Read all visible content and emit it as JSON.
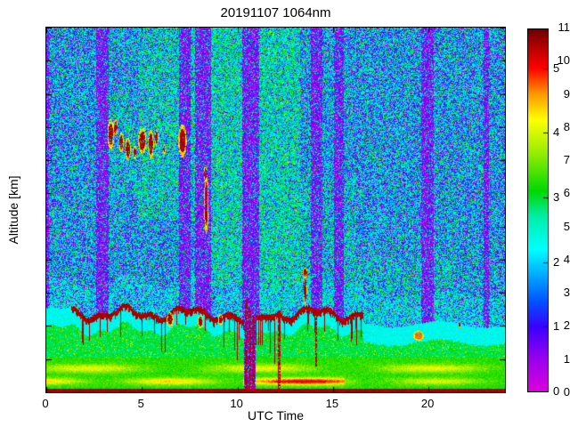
{
  "chart_data": {
    "type": "heatmap",
    "title": "20191107 1064nm",
    "xlabel": "UTC Time",
    "ylabel": "Altitude [km]",
    "x_range": [
      0,
      24
    ],
    "y_range": [
      0,
      11
    ],
    "x_ticks": [
      0,
      5,
      10,
      15,
      20
    ],
    "y_ticks": [
      0,
      1,
      2,
      3,
      4,
      5,
      6,
      7,
      8,
      9,
      10,
      11
    ],
    "colorbar": {
      "ticks": [
        0,
        1,
        2,
        3,
        4,
        5
      ],
      "value_range": [
        0,
        5.6
      ]
    },
    "colormap": {
      "stops": [
        {
          "v": 0.0,
          "color": "#dc00dc"
        },
        {
          "v": 0.5,
          "color": "#9900ee"
        },
        {
          "v": 1.0,
          "color": "#3a00ff"
        },
        {
          "v": 1.4,
          "color": "#0055ff"
        },
        {
          "v": 1.8,
          "color": "#00aaff"
        },
        {
          "v": 2.2,
          "color": "#00ffff"
        },
        {
          "v": 2.7,
          "color": "#00eeaa"
        },
        {
          "v": 3.1,
          "color": "#00d800"
        },
        {
          "v": 3.7,
          "color": "#99ee00"
        },
        {
          "v": 4.2,
          "color": "#ffff00"
        },
        {
          "v": 4.6,
          "color": "#ff9900"
        },
        {
          "v": 5.0,
          "color": "#ff0000"
        },
        {
          "v": 5.3,
          "color": "#bb0000"
        },
        {
          "v": 5.6,
          "color": "#6e0000"
        }
      ]
    },
    "attenuation_bands": [
      {
        "x0": 0.0,
        "x1": 0.15
      },
      {
        "x0": 2.6,
        "x1": 3.25
      },
      {
        "x0": 6.95,
        "x1": 7.55
      },
      {
        "x0": 7.8,
        "x1": 8.6
      },
      {
        "x0": 10.25,
        "x1": 11.15
      },
      {
        "x0": 13.85,
        "x1": 14.45
      },
      {
        "x0": 15.05,
        "x1": 15.55
      },
      {
        "x0": 19.6,
        "x1": 20.25
      },
      {
        "x0": 22.9,
        "x1": 23.15
      }
    ],
    "deep_band": {
      "x0": 10.35,
      "x1": 10.95
    },
    "green_zones": [
      {
        "x0": 4.8,
        "x1": 9.9,
        "y0": 5.2,
        "y1": 11.0,
        "g": 0.45
      },
      {
        "x0": 8.2,
        "x1": 13.3,
        "y0": 3.2,
        "y1": 11.0,
        "g": 0.6
      },
      {
        "x0": 11.2,
        "x1": 16.2,
        "y0": 2.4,
        "y1": 6.5,
        "g": 0.3
      },
      {
        "x0": 16.2,
        "x1": 21.5,
        "y0": 2.0,
        "y1": 4.2,
        "g": 0.2
      },
      {
        "x0": 3.2,
        "x1": 4.8,
        "y0": 6.0,
        "y1": 9.0,
        "g": 0.25
      }
    ],
    "aerosol": {
      "maroon_x0": 1.3,
      "maroon_x1": 16.6,
      "boundary_alt": 2.45,
      "boundary_alt_right": 2.05,
      "layers": {
        "bottom_line_top": 0.12,
        "low_top": 1.05,
        "streak1_alt": 0.33,
        "streak2_alt": 0.72,
        "cyan_thickness": 0.55
      }
    },
    "cloud_features": [
      {
        "x": 3.35,
        "y": 7.8,
        "rx": 0.18,
        "ry": 0.45
      },
      {
        "x": 3.6,
        "y": 8.0,
        "rx": 0.12,
        "ry": 0.25
      },
      {
        "x": 3.9,
        "y": 7.55,
        "rx": 0.12,
        "ry": 0.3
      },
      {
        "x": 4.25,
        "y": 7.35,
        "rx": 0.15,
        "ry": 0.35
      },
      {
        "x": 4.6,
        "y": 7.25,
        "rx": 0.1,
        "ry": 0.2
      },
      {
        "x": 5.0,
        "y": 7.6,
        "rx": 0.22,
        "ry": 0.4
      },
      {
        "x": 5.45,
        "y": 7.5,
        "rx": 0.15,
        "ry": 0.45
      },
      {
        "x": 5.75,
        "y": 7.7,
        "rx": 0.1,
        "ry": 0.25
      },
      {
        "x": 6.15,
        "y": 7.35,
        "rx": 0.07,
        "ry": 0.15
      },
      {
        "x": 7.1,
        "y": 7.6,
        "rx": 0.22,
        "ry": 0.5
      },
      {
        "x": 8.35,
        "y": 5.7,
        "rx": 0.12,
        "ry": 0.9
      },
      {
        "x": 8.3,
        "y": 6.6,
        "rx": 0.08,
        "ry": 0.25
      },
      {
        "x": 13.52,
        "y": 3.1,
        "rx": 0.09,
        "ry": 0.55
      },
      {
        "x": 13.52,
        "y": 3.62,
        "rx": 0.13,
        "ry": 0.16
      },
      {
        "x": 6.45,
        "y": 2.2,
        "rx": 0.18,
        "ry": 0.22
      },
      {
        "x": 8.05,
        "y": 2.15,
        "rx": 0.15,
        "ry": 0.2
      },
      {
        "x": 9.1,
        "y": 2.2,
        "rx": 0.12,
        "ry": 0.18
      },
      {
        "x": 19.45,
        "y": 1.72,
        "rx": 0.28,
        "ry": 0.16,
        "core": 4.7,
        "fringe": 4.2
      },
      {
        "x": 21.6,
        "y": 2.05,
        "rx": 0.07,
        "ry": 0.1
      }
    ],
    "vertical_streaks": [
      {
        "x": 10.45,
        "w": 0.05,
        "y0": 0.1,
        "y1": 2.8
      },
      {
        "x": 10.62,
        "w": 0.05,
        "y0": 0.1,
        "y1": 2.6
      },
      {
        "x": 10.8,
        "w": 0.04,
        "y0": 0.1,
        "y1": 2.3
      },
      {
        "x": 12.15,
        "w": 0.05,
        "y0": 0.15,
        "y1": 2.45
      },
      {
        "x": 14.1,
        "w": 0.04,
        "y0": 0.8,
        "y1": 2.5
      }
    ]
  }
}
